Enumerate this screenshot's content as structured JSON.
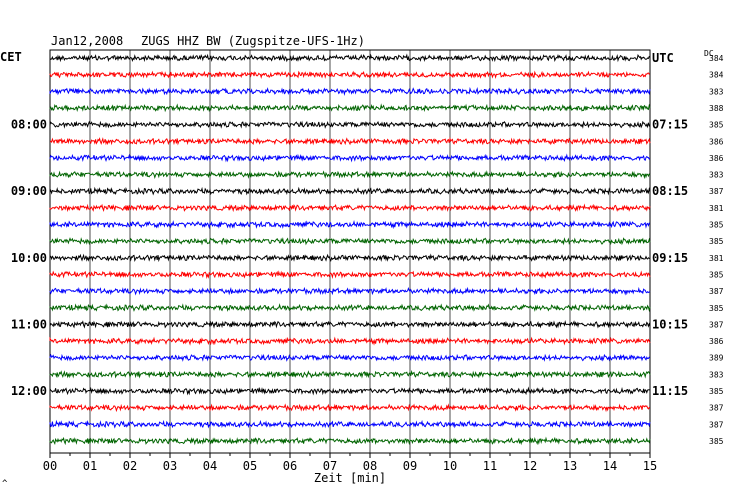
{
  "header": {
    "date": "Jan12,2008",
    "station": "ZUGS HHZ BW (Zugspitze-UFS-1Hz)",
    "left_tz": "CET",
    "right_tz": "UTC",
    "dc_label": "DC",
    "corner_mark": "^"
  },
  "colors": {
    "black": "#000000",
    "red": "#ff0000",
    "blue": "#0000ff",
    "green": "#006400",
    "grid": "#000000"
  },
  "chart_data": {
    "type": "line",
    "title": "Jan12,2008 ZUGS HHZ BW (Zugspitze-UFS-1Hz)",
    "xlabel": "Zeit [min]",
    "ylabel": "",
    "xlim": [
      0,
      15
    ],
    "x_ticks": [
      "00",
      "01",
      "02",
      "03",
      "04",
      "05",
      "06",
      "07",
      "08",
      "09",
      "10",
      "11",
      "12",
      "13",
      "14",
      "15"
    ],
    "trace_color_cycle": [
      "black",
      "red",
      "blue",
      "green"
    ],
    "traces": 24,
    "left_hour_labels": [
      {
        "trace": 4,
        "label": "08:00"
      },
      {
        "trace": 8,
        "label": "09:00"
      },
      {
        "trace": 12,
        "label": "10:00"
      },
      {
        "trace": 16,
        "label": "11:00"
      },
      {
        "trace": 20,
        "label": "12:00"
      }
    ],
    "right_hour_labels": [
      {
        "trace": 0,
        "label": "UTC"
      },
      {
        "trace": 4,
        "label": "07:15"
      },
      {
        "trace": 8,
        "label": "08:15"
      },
      {
        "trace": 12,
        "label": "09:15"
      },
      {
        "trace": 16,
        "label": "10:15"
      },
      {
        "trace": 20,
        "label": "11:15"
      }
    ],
    "dc_offsets": [
      "384",
      "384",
      "383",
      "388",
      "385",
      "386",
      "386",
      "383",
      "387",
      "381",
      "385",
      "385",
      "381",
      "385",
      "387",
      "385",
      "387",
      "386",
      "389",
      "383",
      "385",
      "387",
      "387",
      "385"
    ],
    "grid": true
  }
}
